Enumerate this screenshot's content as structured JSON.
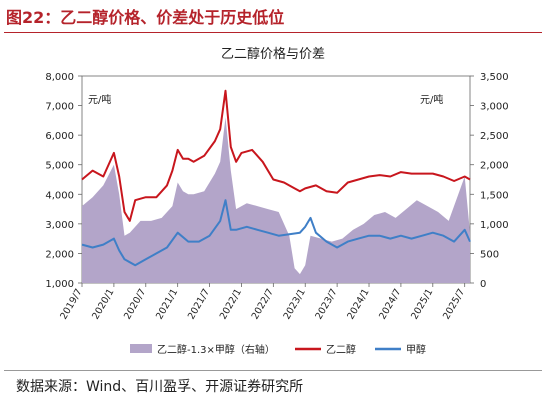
{
  "header": {
    "title": "图22：乙二醇价格、价差处于历史低位"
  },
  "footer": {
    "source": "数据来源：Wind、百川盈孚、开源证券研究所"
  },
  "colors": {
    "spread": "#b3a5c9",
    "meg": "#c8161d",
    "methanol": "#3f7fc7",
    "accent": "#b5232b"
  },
  "chart_data": {
    "type": "line",
    "title": "乙二醇价格与价差",
    "left_axis": {
      "unit_label": "元/吨",
      "ylim": [
        1000,
        8000
      ],
      "ticks": [
        "1,000",
        "2,000",
        "3,000",
        "4,000",
        "5,000",
        "6,000",
        "7,000",
        "8,000"
      ]
    },
    "right_axis": {
      "unit_label": "元/吨",
      "ylim": [
        0,
        3500
      ],
      "ticks": [
        "0",
        "500",
        "1,000",
        "1,500",
        "2,000",
        "2,500",
        "3,000",
        "3,500"
      ]
    },
    "x_ticks": [
      "2019/7",
      "2020/1",
      "2020/7",
      "2021/1",
      "2021/7",
      "2022/1",
      "2022/7",
      "2023/1",
      "2023/7",
      "2024/1",
      "2024/7",
      "2025/1",
      "2025/7"
    ],
    "x_domain": [
      "2019-07",
      "2025-08"
    ],
    "series": [
      {
        "name": "乙二醇-1.3×甲醇（右轴）",
        "type": "area",
        "axis": "right",
        "x": [
          "2019-07",
          "2019-09",
          "2019-11",
          "2020-01",
          "2020-02",
          "2020-03",
          "2020-04",
          "2020-06",
          "2020-08",
          "2020-10",
          "2020-12",
          "2021-01",
          "2021-02",
          "2021-03",
          "2021-04",
          "2021-06",
          "2021-08",
          "2021-09",
          "2021-10",
          "2021-11",
          "2021-12",
          "2022-02",
          "2022-04",
          "2022-06",
          "2022-08",
          "2022-10",
          "2022-11",
          "2022-12",
          "2023-01",
          "2023-02",
          "2023-04",
          "2023-06",
          "2023-08",
          "2023-10",
          "2023-12",
          "2024-02",
          "2024-04",
          "2024-06",
          "2024-08",
          "2024-10",
          "2024-12",
          "2025-02",
          "2025-04",
          "2025-06",
          "2025-07",
          "2025-08"
        ],
        "values": [
          1300,
          1450,
          1650,
          2000,
          1500,
          800,
          850,
          1050,
          1050,
          1100,
          1300,
          1700,
          1550,
          1500,
          1500,
          1550,
          1850,
          2050,
          2800,
          1900,
          1250,
          1350,
          1300,
          1250,
          1200,
          800,
          250,
          150,
          300,
          800,
          750,
          700,
          750,
          900,
          1000,
          1150,
          1200,
          1100,
          1250,
          1400,
          1300,
          1200,
          1050,
          1550,
          1800,
          850
        ]
      },
      {
        "name": "乙二醇",
        "type": "line",
        "axis": "left",
        "x": [
          "2019-07",
          "2019-09",
          "2019-11",
          "2020-01",
          "2020-02",
          "2020-03",
          "2020-04",
          "2020-05",
          "2020-07",
          "2020-09",
          "2020-11",
          "2020-12",
          "2021-01",
          "2021-02",
          "2021-03",
          "2021-04",
          "2021-06",
          "2021-08",
          "2021-09",
          "2021-10",
          "2021-11",
          "2021-12",
          "2022-01",
          "2022-03",
          "2022-05",
          "2022-07",
          "2022-09",
          "2022-11",
          "2022-12",
          "2023-01",
          "2023-03",
          "2023-05",
          "2023-07",
          "2023-09",
          "2023-11",
          "2024-01",
          "2024-03",
          "2024-05",
          "2024-07",
          "2024-09",
          "2024-11",
          "2025-01",
          "2025-03",
          "2025-05",
          "2025-07",
          "2025-08"
        ],
        "values": [
          4500,
          4800,
          4600,
          5400,
          4600,
          3400,
          3100,
          3800,
          3900,
          3900,
          4300,
          4800,
          5500,
          5200,
          5200,
          5100,
          5300,
          5800,
          6200,
          7500,
          5600,
          5100,
          5400,
          5500,
          5100,
          4500,
          4400,
          4200,
          4100,
          4200,
          4300,
          4100,
          4050,
          4400,
          4500,
          4600,
          4650,
          4600,
          4750,
          4700,
          4700,
          4700,
          4600,
          4450,
          4600,
          4500
        ]
      },
      {
        "name": "甲醇",
        "type": "line",
        "axis": "left",
        "x": [
          "2019-07",
          "2019-09",
          "2019-11",
          "2020-01",
          "2020-02",
          "2020-03",
          "2020-05",
          "2020-07",
          "2020-09",
          "2020-11",
          "2021-01",
          "2021-03",
          "2021-05",
          "2021-07",
          "2021-09",
          "2021-10",
          "2021-11",
          "2021-12",
          "2022-02",
          "2022-04",
          "2022-06",
          "2022-08",
          "2022-10",
          "2022-12",
          "2023-01",
          "2023-02",
          "2023-03",
          "2023-05",
          "2023-07",
          "2023-09",
          "2023-11",
          "2024-01",
          "2024-03",
          "2024-05",
          "2024-07",
          "2024-09",
          "2024-11",
          "2025-01",
          "2025-03",
          "2025-05",
          "2025-07",
          "2025-08"
        ],
        "values": [
          2300,
          2200,
          2300,
          2500,
          2100,
          1800,
          1600,
          1800,
          2000,
          2200,
          2700,
          2400,
          2400,
          2600,
          3100,
          3800,
          2800,
          2800,
          2900,
          2800,
          2700,
          2600,
          2650,
          2700,
          2900,
          3200,
          2700,
          2400,
          2200,
          2400,
          2500,
          2600,
          2600,
          2500,
          2600,
          2500,
          2600,
          2700,
          2600,
          2400,
          2800,
          2400
        ]
      }
    ]
  }
}
